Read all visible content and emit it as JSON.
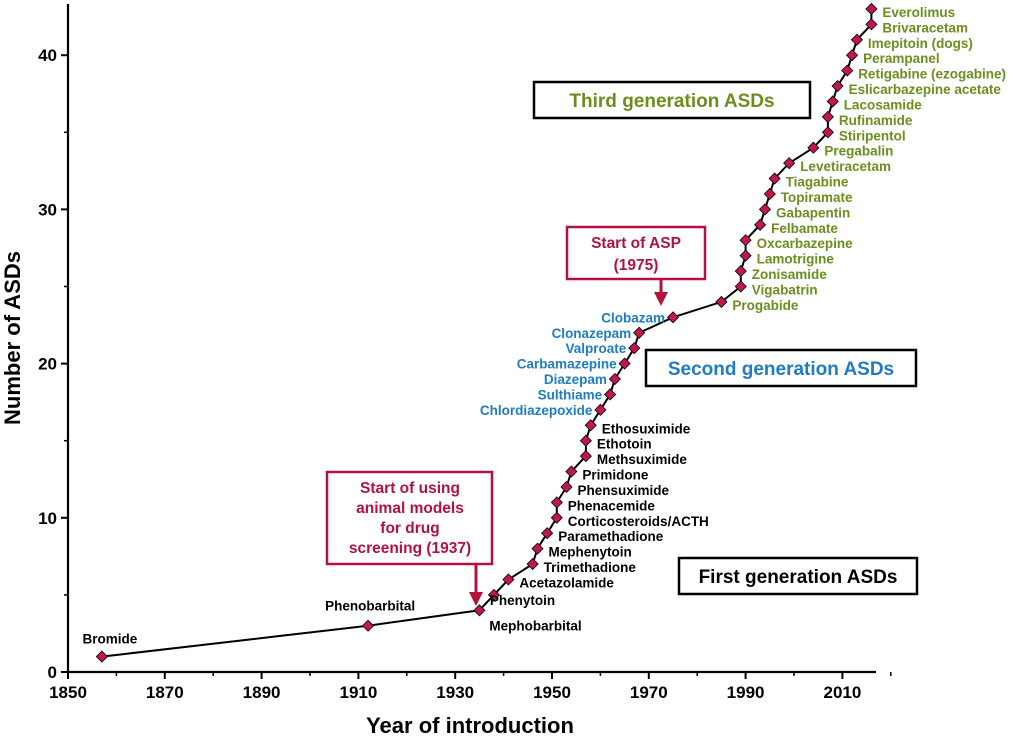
{
  "chart_data": {
    "type": "line",
    "title": "",
    "xlabel": "Year of introduction",
    "ylabel": "Number of ASDs",
    "xlim": [
      1850,
      2020
    ],
    "ylim": [
      0,
      43
    ],
    "xticks": [
      "1850",
      "1870",
      "1890",
      "1910",
      "1930",
      "1950",
      "1970",
      "1990",
      "2010"
    ],
    "yticks": [
      "0",
      "10",
      "20",
      "30",
      "40"
    ],
    "grid": false,
    "line_color": "#000000",
    "marker_color": "#c0184a",
    "colors": {
      "first": "#000000",
      "second": "#1f7cc4",
      "third": "#6b8e1e",
      "annotation": "#b3123f"
    },
    "points": [
      {
        "x": 1857,
        "y": 1,
        "label": "Bromide",
        "gen": "first"
      },
      {
        "x": 1912,
        "y": 3,
        "label": "Phenobarbital",
        "gen": "first"
      },
      {
        "x": 1935,
        "y": 4,
        "label": "Mephobarbital",
        "gen": "first"
      },
      {
        "x": 1938,
        "y": 5,
        "label": "Phenytoin",
        "gen": "first"
      },
      {
        "x": 1941,
        "y": 6,
        "label": "Acetazolamide",
        "gen": "first"
      },
      {
        "x": 1946,
        "y": 7,
        "label": "Trimethadione",
        "gen": "first"
      },
      {
        "x": 1947,
        "y": 8,
        "label": "Mephenytoin",
        "gen": "first"
      },
      {
        "x": 1949,
        "y": 9,
        "label": "Paramethadione",
        "gen": "first"
      },
      {
        "x": 1951,
        "y": 10,
        "label": "Corticosteroids/ACTH",
        "gen": "first"
      },
      {
        "x": 1951,
        "y": 11,
        "label": "Phenacemide",
        "gen": "first"
      },
      {
        "x": 1953,
        "y": 12,
        "label": "Phensuximide",
        "gen": "first"
      },
      {
        "x": 1954,
        "y": 13,
        "label": "Primidone",
        "gen": "first"
      },
      {
        "x": 1957,
        "y": 14,
        "label": "Methsuximide",
        "gen": "first"
      },
      {
        "x": 1957,
        "y": 15,
        "label": "Ethotoin",
        "gen": "first"
      },
      {
        "x": 1958,
        "y": 16,
        "label": "Ethosuximide",
        "gen": "first"
      },
      {
        "x": 1960,
        "y": 17,
        "label": "Chlordiazepoxide",
        "gen": "second"
      },
      {
        "x": 1962,
        "y": 18,
        "label": "Sulthiame",
        "gen": "second"
      },
      {
        "x": 1963,
        "y": 19,
        "label": "Diazepam",
        "gen": "second"
      },
      {
        "x": 1965,
        "y": 20,
        "label": "Carbamazepine",
        "gen": "second"
      },
      {
        "x": 1967,
        "y": 21,
        "label": "Valproate",
        "gen": "second"
      },
      {
        "x": 1968,
        "y": 22,
        "label": "Clonazepam",
        "gen": "second"
      },
      {
        "x": 1975,
        "y": 23,
        "label": "Clobazam",
        "gen": "second"
      },
      {
        "x": 1985,
        "y": 24,
        "label": "Progabide",
        "gen": "third"
      },
      {
        "x": 1989,
        "y": 25,
        "label": "Vigabatrin",
        "gen": "third"
      },
      {
        "x": 1989,
        "y": 26,
        "label": "Zonisamide",
        "gen": "third"
      },
      {
        "x": 1990,
        "y": 27,
        "label": "Lamotrigine",
        "gen": "third"
      },
      {
        "x": 1990,
        "y": 28,
        "label": "Oxcarbazepine",
        "gen": "third"
      },
      {
        "x": 1993,
        "y": 29,
        "label": "Felbamate",
        "gen": "third"
      },
      {
        "x": 1994,
        "y": 30,
        "label": "Gabapentin",
        "gen": "third"
      },
      {
        "x": 1995,
        "y": 31,
        "label": "Topiramate",
        "gen": "third"
      },
      {
        "x": 1996,
        "y": 32,
        "label": "Tiagabine",
        "gen": "third"
      },
      {
        "x": 1999,
        "y": 33,
        "label": "Levetiracetam",
        "gen": "third"
      },
      {
        "x": 2004,
        "y": 34,
        "label": "Pregabalin",
        "gen": "third"
      },
      {
        "x": 2007,
        "y": 35,
        "label": "Stiripentol",
        "gen": "third"
      },
      {
        "x": 2007,
        "y": 36,
        "label": "Rufinamide",
        "gen": "third"
      },
      {
        "x": 2008,
        "y": 37,
        "label": "Lacosamide",
        "gen": "third"
      },
      {
        "x": 2009,
        "y": 38,
        "label": "Eslicarbazepine acetate",
        "gen": "third"
      },
      {
        "x": 2011,
        "y": 39,
        "label": "Retigabine (ezogabine)",
        "gen": "third"
      },
      {
        "x": 2012,
        "y": 40,
        "label": "Perampanel",
        "gen": "third"
      },
      {
        "x": 2013,
        "y": 41,
        "label": "Imepitoin (dogs)",
        "gen": "third"
      },
      {
        "x": 2016,
        "y": 42,
        "label": "Brivaracetam",
        "gen": "third"
      },
      {
        "x": 2016,
        "y": 43,
        "label": "Everolimus",
        "gen": "third"
      }
    ],
    "generation_boxes": {
      "first": "First generation ASDs",
      "second": "Second generation ASDs",
      "third": "Third generation ASDs"
    },
    "annotations": [
      {
        "lines": [
          "Start of using",
          "animal models",
          "for drug",
          "screening (1937)"
        ],
        "x": 1937
      },
      {
        "lines": [
          "Start of ASP",
          "(1975)"
        ],
        "x": 1975
      }
    ]
  }
}
